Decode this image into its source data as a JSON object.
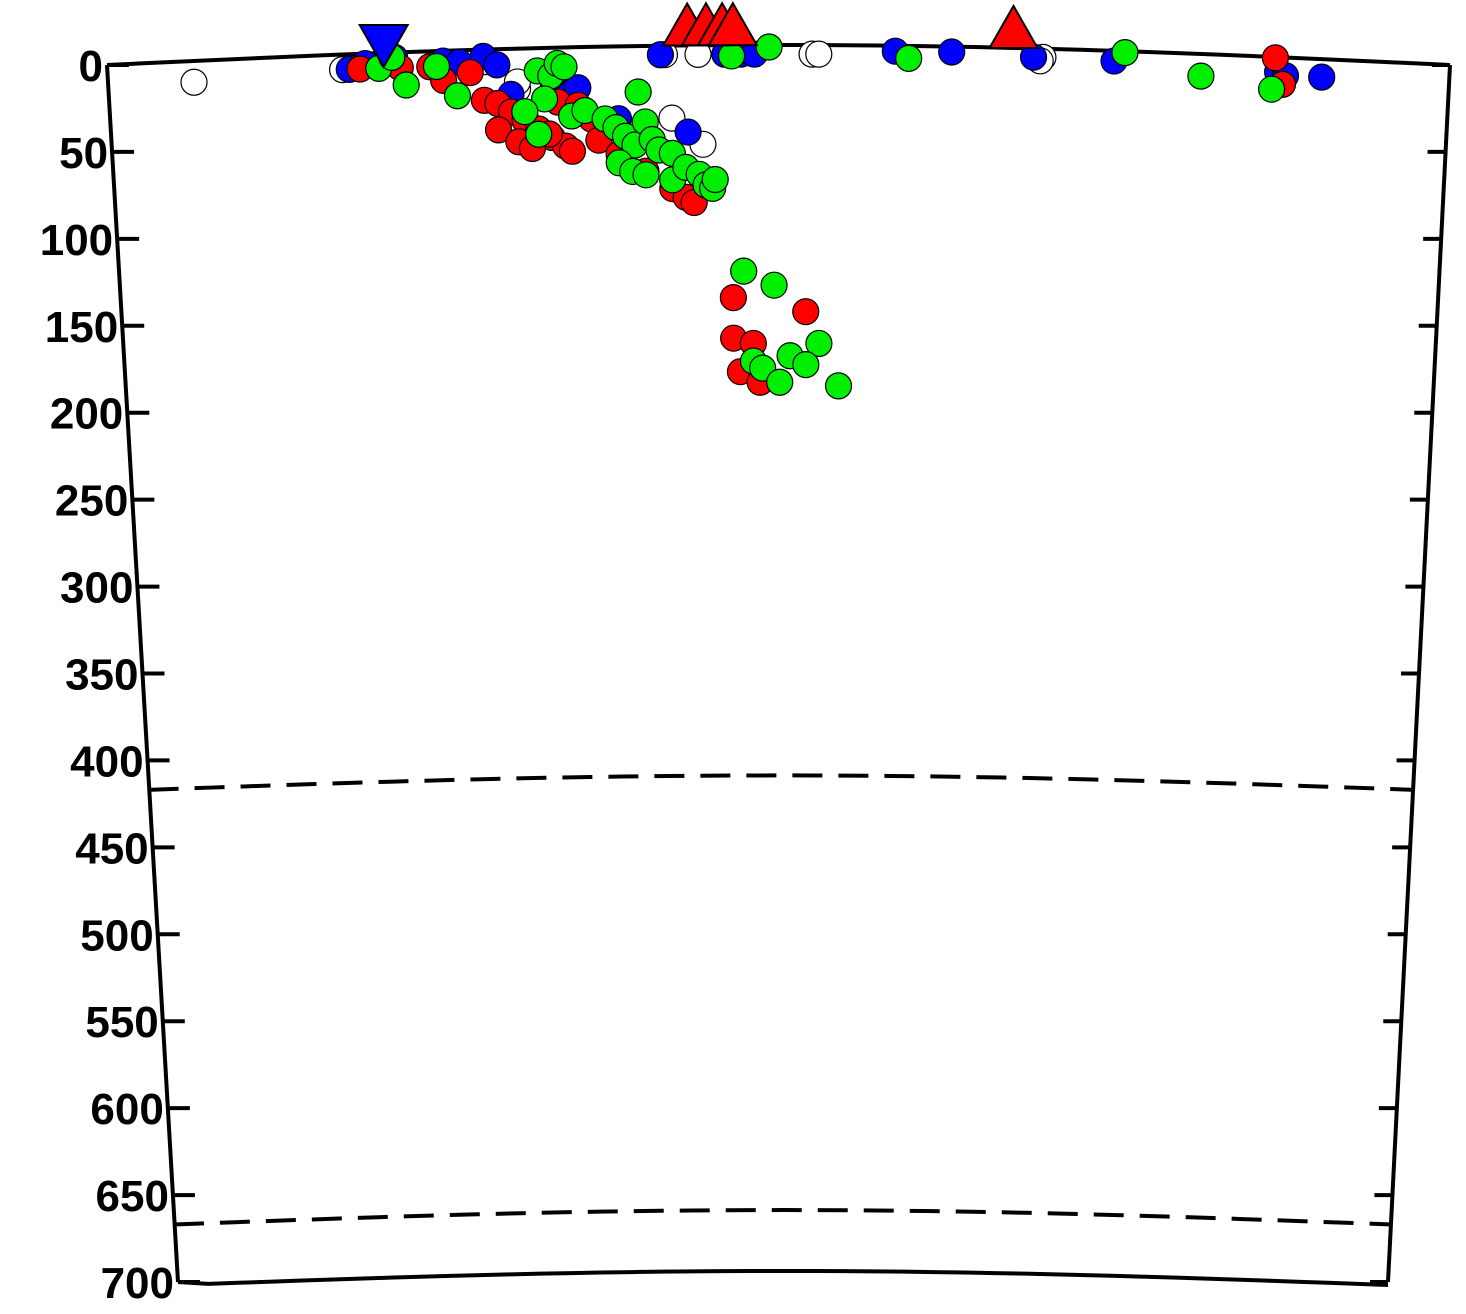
{
  "chart_data": {
    "type": "scatter",
    "title": "",
    "xlabel": "",
    "ylabel": "",
    "ylim": [
      0,
      700
    ],
    "y_inverted": true,
    "x_range": [
      0,
      1
    ],
    "y_ticks": [
      "0",
      "50",
      "100",
      "150",
      "200",
      "250",
      "300",
      "350",
      "400",
      "450",
      "500",
      "550",
      "600",
      "650",
      "700"
    ],
    "discontinuities_depth": [
      410,
      660
    ],
    "colors": {
      "red": "#ff0000",
      "blue": "#0000ff",
      "green": "#00ee00",
      "white": "#ffffff",
      "line": "#000000"
    },
    "surface_markers": [
      {
        "x": 0.206,
        "shape": "inverted-triangle",
        "color": "#0000ff"
      },
      {
        "x": 0.432,
        "shape": "triangle",
        "color": "#ff0000"
      },
      {
        "x": 0.446,
        "shape": "triangle",
        "color": "#ff0000"
      },
      {
        "x": 0.458,
        "shape": "triangle",
        "color": "#ff0000"
      },
      {
        "x": 0.466,
        "shape": "triangle",
        "color": "#ff0000"
      },
      {
        "x": 0.675,
        "shape": "triangle",
        "color": "#ff0000"
      }
    ],
    "series": [
      {
        "color": "#ffffff",
        "points": [
          [
            0.064,
            12
          ],
          [
            0.175,
            8
          ],
          [
            0.305,
            22
          ],
          [
            0.305,
            18
          ],
          [
            0.282,
            6
          ],
          [
            0.415,
            4
          ],
          [
            0.42,
            40
          ],
          [
            0.44,
            4
          ],
          [
            0.443,
            55
          ],
          [
            0.525,
            4
          ],
          [
            0.53,
            4
          ],
          [
            0.697,
            4
          ],
          [
            0.695,
            6
          ]
        ]
      },
      {
        "color": "#0000ff",
        "points": [
          [
            0.18,
            8
          ],
          [
            0.192,
            5
          ],
          [
            0.212,
            4
          ],
          [
            0.214,
            2
          ],
          [
            0.25,
            5
          ],
          [
            0.262,
            6
          ],
          [
            0.28,
            3
          ],
          [
            0.29,
            8
          ],
          [
            0.3,
            25
          ],
          [
            0.31,
            38
          ],
          [
            0.33,
            14
          ],
          [
            0.332,
            20
          ],
          [
            0.345,
            25
          ],
          [
            0.35,
            22
          ],
          [
            0.38,
            40
          ],
          [
            0.412,
            4
          ],
          [
            0.432,
            48
          ],
          [
            0.46,
            4
          ],
          [
            0.472,
            4
          ],
          [
            0.475,
            2
          ],
          [
            0.482,
            4
          ],
          [
            0.587,
            2
          ],
          [
            0.629,
            2
          ],
          [
            0.69,
            4
          ],
          [
            0.75,
            5
          ],
          [
            0.872,
            8
          ],
          [
            0.878,
            10
          ],
          [
            0.905,
            10
          ]
        ]
      },
      {
        "color": "#ff0000",
        "points": [
          [
            0.188,
            8
          ],
          [
            0.218,
            8
          ],
          [
            0.24,
            8
          ],
          [
            0.25,
            16
          ],
          [
            0.27,
            12
          ],
          [
            0.28,
            28
          ],
          [
            0.29,
            30
          ],
          [
            0.3,
            35
          ],
          [
            0.31,
            40
          ],
          [
            0.32,
            45
          ],
          [
            0.33,
            50
          ],
          [
            0.34,
            55
          ],
          [
            0.29,
            45
          ],
          [
            0.305,
            52
          ],
          [
            0.315,
            56
          ],
          [
            0.328,
            48
          ],
          [
            0.335,
            30
          ],
          [
            0.35,
            32
          ],
          [
            0.36,
            40
          ],
          [
            0.365,
            52
          ],
          [
            0.345,
            58
          ],
          [
            0.38,
            60
          ],
          [
            0.4,
            70
          ],
          [
            0.42,
            80
          ],
          [
            0.43,
            85
          ],
          [
            0.436,
            88
          ],
          [
            0.465,
            142
          ],
          [
            0.465,
            165
          ],
          [
            0.48,
            168
          ],
          [
            0.47,
            184
          ],
          [
            0.485,
            190
          ],
          [
            0.52,
            150
          ],
          [
            0.87,
            0
          ],
          [
            0.876,
            15
          ]
        ]
      },
      {
        "color": "#00ee00",
        "points": [
          [
            0.202,
            8
          ],
          [
            0.212,
            2
          ],
          [
            0.222,
            18
          ],
          [
            0.245,
            8
          ],
          [
            0.26,
            25
          ],
          [
            0.32,
            12
          ],
          [
            0.33,
            15
          ],
          [
            0.335,
            8
          ],
          [
            0.34,
            10
          ],
          [
            0.325,
            28
          ],
          [
            0.345,
            38
          ],
          [
            0.355,
            35
          ],
          [
            0.37,
            40
          ],
          [
            0.378,
            45
          ],
          [
            0.385,
            50
          ],
          [
            0.392,
            55
          ],
          [
            0.4,
            42
          ],
          [
            0.405,
            52
          ],
          [
            0.41,
            58
          ],
          [
            0.42,
            60
          ],
          [
            0.38,
            65
          ],
          [
            0.39,
            70
          ],
          [
            0.4,
            72
          ],
          [
            0.42,
            75
          ],
          [
            0.43,
            68
          ],
          [
            0.44,
            72
          ],
          [
            0.445,
            78
          ],
          [
            0.45,
            80
          ],
          [
            0.452,
            75
          ],
          [
            0.31,
            35
          ],
          [
            0.32,
            48
          ],
          [
            0.395,
            25
          ],
          [
            0.465,
            5
          ],
          [
            0.493,
            0
          ],
          [
            0.597,
            6
          ],
          [
            0.758,
            0
          ],
          [
            0.815,
            12
          ],
          [
            0.868,
            18
          ],
          [
            0.473,
            127
          ],
          [
            0.496,
            135
          ],
          [
            0.53,
            168
          ],
          [
            0.48,
            178
          ],
          [
            0.487,
            182
          ],
          [
            0.5,
            190
          ],
          [
            0.508,
            175
          ],
          [
            0.52,
            180
          ],
          [
            0.545,
            192
          ]
        ]
      }
    ]
  }
}
